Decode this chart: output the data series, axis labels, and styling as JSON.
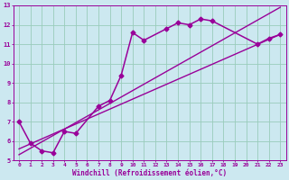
{
  "xlabel": "Windchill (Refroidissement éolien,°C)",
  "bg_color": "#cce8f0",
  "line_color": "#990099",
  "grid_color": "#99ccbb",
  "xlim": [
    -0.5,
    23.5
  ],
  "ylim": [
    5,
    13
  ],
  "xticks": [
    0,
    1,
    2,
    3,
    4,
    5,
    6,
    7,
    8,
    9,
    10,
    11,
    12,
    13,
    14,
    15,
    16,
    17,
    18,
    19,
    20,
    21,
    22,
    23
  ],
  "yticks": [
    5,
    6,
    7,
    8,
    9,
    10,
    11,
    12,
    13
  ],
  "line1_x": [
    0,
    23
  ],
  "line1_y": [
    5.6,
    11.5
  ],
  "line2_x": [
    0,
    23
  ],
  "line2_y": [
    5.3,
    12.9
  ],
  "series_x": [
    0,
    1,
    2,
    3,
    4,
    5,
    7,
    8,
    9,
    10,
    11,
    13,
    14,
    15,
    16,
    17,
    21,
    22,
    23
  ],
  "series_y": [
    7.0,
    5.9,
    5.5,
    5.4,
    6.5,
    6.4,
    7.8,
    8.1,
    9.4,
    11.6,
    11.2,
    11.8,
    12.1,
    12.0,
    12.3,
    12.2,
    11.0,
    11.3,
    11.5
  ]
}
